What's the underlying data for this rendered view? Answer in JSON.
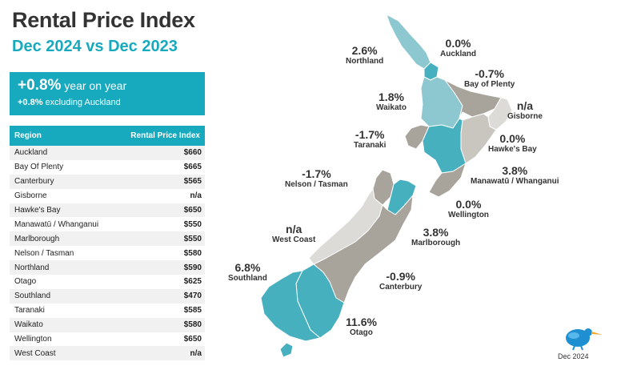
{
  "header": {
    "title": "Rental Price Index",
    "subtitle": "Dec 2024 vs Dec 2023"
  },
  "summary": {
    "main_value": "+0.8%",
    "main_text": " year on year",
    "sub_value": "+0.8%",
    "sub_text": " excluding Auckland"
  },
  "table": {
    "col_region": "Region",
    "col_index": "Rental Price Index",
    "rows": [
      {
        "region": "Auckland",
        "value": "$660"
      },
      {
        "region": "Bay Of Plenty",
        "value": "$665"
      },
      {
        "region": "Canterbury",
        "value": "$565"
      },
      {
        "region": "Gisborne",
        "value": "n/a"
      },
      {
        "region": "Hawke's Bay",
        "value": "$650"
      },
      {
        "region": "Manawatū / Whanganui",
        "value": "$550"
      },
      {
        "region": "Marlborough",
        "value": "$550"
      },
      {
        "region": "Nelson / Tasman",
        "value": "$580"
      },
      {
        "region": "Northland",
        "value": "$590"
      },
      {
        "region": "Otago",
        "value": "$625"
      },
      {
        "region": "Southland",
        "value": "$470"
      },
      {
        "region": "Taranaki",
        "value": "$585"
      },
      {
        "region": "Waikato",
        "value": "$580"
      },
      {
        "region": "Wellington",
        "value": "$650"
      },
      {
        "region": "West Coast",
        "value": "n/a"
      }
    ]
  },
  "map": {
    "regions": {
      "northland": {
        "pct": "2.6%",
        "name": "Northland"
      },
      "auckland": {
        "pct": "0.0%",
        "name": "Auckland"
      },
      "bay_of_plenty": {
        "pct": "-0.7%",
        "name": "Bay of Plenty"
      },
      "waikato": {
        "pct": "1.8%",
        "name": "Waikato"
      },
      "gisborne": {
        "pct": "n/a",
        "name": "Gisborne"
      },
      "taranaki": {
        "pct": "-1.7%",
        "name": "Taranaki"
      },
      "hawkes_bay": {
        "pct": "0.0%",
        "name": "Hawke's Bay"
      },
      "manawatu": {
        "pct": "3.8%",
        "name": "Manawatū / Whanganui"
      },
      "nelson": {
        "pct": "-1.7%",
        "name": "Nelson / Tasman"
      },
      "wellington": {
        "pct": "0.0%",
        "name": "Wellington"
      },
      "west_coast": {
        "pct": "n/a",
        "name": "West Coast"
      },
      "marlborough": {
        "pct": "3.8%",
        "name": "Marlborough"
      },
      "southland": {
        "pct": "6.8%",
        "name": "Southland"
      },
      "canterbury": {
        "pct": "-0.9%",
        "name": "Canterbury"
      },
      "otago": {
        "pct": "11.6%",
        "name": "Otago"
      }
    },
    "colors": {
      "teal_dark": "#46b0bf",
      "teal": "#8dc7cf",
      "grey_dark": "#a8a49b",
      "grey": "#c9c6bf",
      "grey_light": "#dcdbd8"
    }
  },
  "footer": {
    "date": "Dec 2024",
    "logo": "kiwi-bird-icon"
  }
}
